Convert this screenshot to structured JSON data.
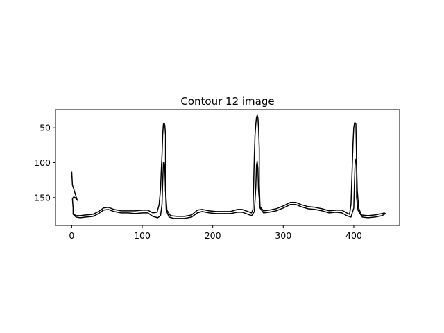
{
  "chart_data": {
    "type": "line",
    "title": "Contour 12 image",
    "xlabel": "",
    "ylabel": "",
    "xlim": [
      -23,
      465
    ],
    "ylim": [
      190,
      24
    ],
    "y_inverted": true,
    "grid": false,
    "legend": "none",
    "x_ticks": [
      0,
      100,
      200,
      300,
      400
    ],
    "x_tick_labels": [
      "0",
      "100",
      "200",
      "300",
      "400"
    ],
    "y_ticks": [
      50,
      100,
      150
    ],
    "y_tick_labels": [
      "50",
      "100",
      "150"
    ],
    "colors": {
      "line": "#000000",
      "axes": "#000000",
      "background": "#ffffff"
    },
    "series": [
      {
        "points": [
          [
            0,
            113
          ],
          [
            1,
            132
          ],
          [
            3,
            138
          ],
          [
            5,
            145
          ],
          [
            7,
            151
          ],
          [
            8,
            154
          ],
          [
            7,
            153
          ],
          [
            5,
            150
          ],
          [
            3,
            149
          ],
          [
            2,
            150
          ],
          [
            1,
            152
          ],
          [
            2,
            165
          ],
          [
            2,
            174
          ],
          [
            6,
            178
          ],
          [
            12,
            179
          ],
          [
            20,
            178
          ],
          [
            30,
            177
          ],
          [
            38,
            173
          ],
          [
            45,
            168
          ],
          [
            52,
            167
          ],
          [
            60,
            170
          ],
          [
            70,
            172
          ],
          [
            80,
            172
          ],
          [
            90,
            173
          ],
          [
            100,
            172
          ],
          [
            108,
            172
          ],
          [
            115,
            177
          ],
          [
            122,
            179
          ],
          [
            126,
            176
          ],
          [
            128,
            160
          ],
          [
            129,
            128
          ],
          [
            130,
            100
          ],
          [
            131,
            99
          ],
          [
            132,
            105
          ],
          [
            133,
            140
          ],
          [
            134,
            168
          ],
          [
            138,
            178
          ],
          [
            145,
            180
          ],
          [
            160,
            180
          ],
          [
            170,
            178
          ],
          [
            178,
            172
          ],
          [
            185,
            170
          ],
          [
            195,
            172
          ],
          [
            205,
            173
          ],
          [
            215,
            173
          ],
          [
            225,
            173
          ],
          [
            235,
            171
          ],
          [
            242,
            171
          ],
          [
            250,
            174
          ],
          [
            255,
            176
          ],
          [
            259,
            170
          ],
          [
            261,
            135
          ],
          [
            262,
            104
          ],
          [
            263,
            98
          ],
          [
            264,
            108
          ],
          [
            265,
            140
          ],
          [
            267,
            165
          ],
          [
            272,
            172
          ],
          [
            280,
            171
          ],
          [
            290,
            169
          ],
          [
            300,
            165
          ],
          [
            310,
            160
          ],
          [
            318,
            160
          ],
          [
            325,
            163
          ],
          [
            335,
            166
          ],
          [
            345,
            167
          ],
          [
            355,
            169
          ],
          [
            365,
            172
          ],
          [
            375,
            171
          ],
          [
            383,
            172
          ],
          [
            390,
            176
          ],
          [
            396,
            178
          ],
          [
            400,
            165
          ],
          [
            401,
            125
          ],
          [
            402,
            98
          ],
          [
            403,
            95
          ],
          [
            404,
            105
          ],
          [
            405,
            140
          ],
          [
            407,
            165
          ],
          [
            412,
            178
          ],
          [
            420,
            179
          ],
          [
            430,
            178
          ],
          [
            440,
            176
          ],
          [
            445,
            173
          ]
        ]
      },
      {
        "points": [
          [
            3,
            174
          ],
          [
            6,
            176
          ],
          [
            12,
            176
          ],
          [
            20,
            175
          ],
          [
            30,
            174
          ],
          [
            38,
            170
          ],
          [
            45,
            165
          ],
          [
            52,
            164
          ],
          [
            60,
            167
          ],
          [
            70,
            169
          ],
          [
            80,
            169
          ],
          [
            90,
            169
          ],
          [
            100,
            168
          ],
          [
            108,
            168
          ],
          [
            115,
            172
          ],
          [
            121,
            171
          ],
          [
            124,
            160
          ],
          [
            126,
            138
          ],
          [
            127,
            110
          ],
          [
            128,
            90
          ],
          [
            129,
            60
          ],
          [
            130,
            45
          ],
          [
            131,
            43
          ],
          [
            132,
            46
          ],
          [
            133,
            60
          ],
          [
            133,
            140
          ],
          [
            135,
            168
          ],
          [
            140,
            176
          ],
          [
            150,
            177
          ],
          [
            160,
            177
          ],
          [
            170,
            175
          ],
          [
            178,
            168
          ],
          [
            185,
            167
          ],
          [
            195,
            169
          ],
          [
            205,
            170
          ],
          [
            215,
            170
          ],
          [
            225,
            170
          ],
          [
            235,
            167
          ],
          [
            242,
            167
          ],
          [
            250,
            170
          ],
          [
            255,
            172
          ],
          [
            257,
            167
          ],
          [
            258,
            130
          ],
          [
            259,
            90
          ],
          [
            260,
            60
          ],
          [
            261,
            45
          ],
          [
            262,
            35
          ],
          [
            263,
            32
          ],
          [
            264,
            35
          ],
          [
            265,
            50
          ],
          [
            266,
            80
          ],
          [
            266,
            130
          ],
          [
            267,
            163
          ],
          [
            272,
            169
          ],
          [
            280,
            168
          ],
          [
            290,
            166
          ],
          [
            300,
            162
          ],
          [
            310,
            157
          ],
          [
            318,
            157
          ],
          [
            325,
            160
          ],
          [
            335,
            163
          ],
          [
            345,
            164
          ],
          [
            355,
            166
          ],
          [
            365,
            169
          ],
          [
            375,
            168
          ],
          [
            383,
            168
          ],
          [
            390,
            172
          ],
          [
            394,
            174
          ],
          [
            396,
            160
          ],
          [
            397,
            130
          ],
          [
            398,
            100
          ],
          [
            399,
            70
          ],
          [
            400,
            50
          ],
          [
            401,
            43
          ],
          [
            402,
            43
          ],
          [
            403,
            45
          ],
          [
            404,
            100
          ],
          [
            404,
            150
          ],
          [
            406,
            168
          ],
          [
            410,
            175
          ],
          [
            420,
            176
          ],
          [
            430,
            175
          ],
          [
            440,
            173
          ],
          [
            443,
            172
          ],
          [
            445,
            173
          ]
        ]
      }
    ]
  }
}
